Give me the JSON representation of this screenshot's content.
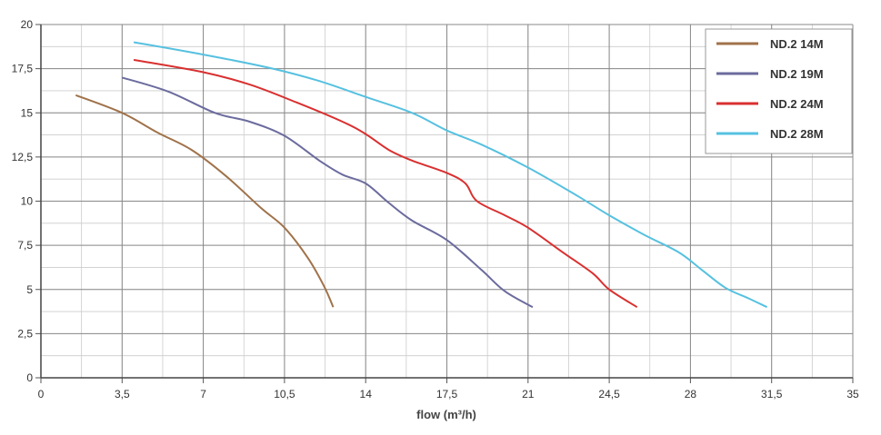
{
  "chart_data": {
    "type": "line",
    "title": "",
    "xlabel": "flow (m³/h)",
    "ylabel": "",
    "xlim": [
      0,
      35
    ],
    "ylim": [
      0,
      20
    ],
    "x_ticks": [
      "0",
      "3,5",
      "7",
      "10,5",
      "14",
      "17,5",
      "21",
      "24,5",
      "28",
      "31,5",
      "35"
    ],
    "y_ticks": [
      "0",
      "2,5",
      "5",
      "7,5",
      "10",
      "12,5",
      "15",
      "17,5",
      "20"
    ],
    "x_minor_step": 1.75,
    "y_minor_step": 1.25,
    "grid": true,
    "legend_position": "top-right",
    "series": [
      {
        "name": "ND.2 14M",
        "color": "#a0724a",
        "points": [
          [
            1.5,
            16
          ],
          [
            3.5,
            15
          ],
          [
            5,
            13.9
          ],
          [
            6.5,
            12.9
          ],
          [
            8,
            11.4
          ],
          [
            9.5,
            9.6
          ],
          [
            10.5,
            8.5
          ],
          [
            11.5,
            6.8
          ],
          [
            12.2,
            5.2
          ],
          [
            12.6,
            4
          ]
        ]
      },
      {
        "name": "ND.2 19M",
        "color": "#6b6b9e",
        "points": [
          [
            3.5,
            17
          ],
          [
            5.5,
            16.2
          ],
          [
            7.5,
            15
          ],
          [
            9,
            14.5
          ],
          [
            10.5,
            13.7
          ],
          [
            12,
            12.3
          ],
          [
            13,
            11.5
          ],
          [
            14,
            11
          ],
          [
            15,
            9.9
          ],
          [
            16,
            8.9
          ],
          [
            17.5,
            7.8
          ],
          [
            19,
            6.1
          ],
          [
            20,
            4.9
          ],
          [
            21.2,
            4
          ]
        ]
      },
      {
        "name": "ND.2 24M",
        "color": "#d93030",
        "points": [
          [
            4,
            18
          ],
          [
            7,
            17.3
          ],
          [
            9,
            16.6
          ],
          [
            11,
            15.6
          ],
          [
            13,
            14.5
          ],
          [
            14,
            13.8
          ],
          [
            15,
            12.9
          ],
          [
            16,
            12.3
          ],
          [
            17.5,
            11.6
          ],
          [
            18.3,
            11
          ],
          [
            18.8,
            10
          ],
          [
            20,
            9.2
          ],
          [
            21,
            8.5
          ],
          [
            22.5,
            7.1
          ],
          [
            23.8,
            5.9
          ],
          [
            24.5,
            5
          ],
          [
            25.7,
            4
          ]
        ]
      },
      {
        "name": "ND.2 28M",
        "color": "#56c1e0",
        "points": [
          [
            4,
            19
          ],
          [
            7,
            18.3
          ],
          [
            10,
            17.5
          ],
          [
            12,
            16.8
          ],
          [
            14,
            15.9
          ],
          [
            16,
            15
          ],
          [
            17.5,
            14
          ],
          [
            19,
            13.2
          ],
          [
            21,
            11.9
          ],
          [
            23,
            10.4
          ],
          [
            24.5,
            9.2
          ],
          [
            26,
            8.1
          ],
          [
            27.5,
            7.1
          ],
          [
            28.5,
            6.1
          ],
          [
            29.5,
            5.1
          ],
          [
            30.5,
            4.5
          ],
          [
            31.3,
            4
          ]
        ]
      }
    ]
  }
}
